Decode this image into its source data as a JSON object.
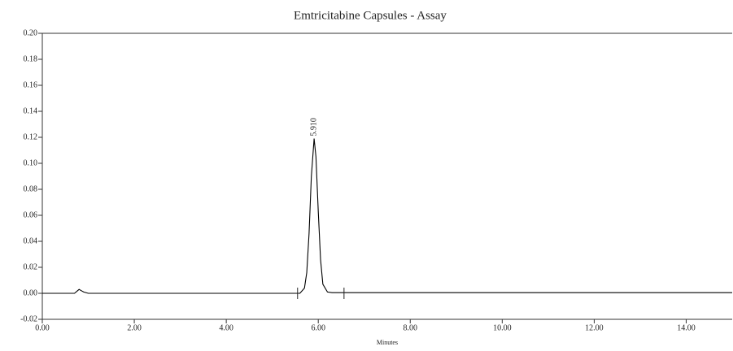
{
  "chart_data": {
    "type": "line",
    "title": "Emtricitabine Capsules - Assay",
    "xlabel": "Minutes",
    "x": [
      0,
      0.7,
      0.8,
      0.85,
      0.9,
      1.0,
      1.5,
      5.5,
      5.6,
      5.7,
      5.75,
      5.8,
      5.85,
      5.91,
      5.95,
      6.0,
      6.05,
      6.1,
      6.2,
      6.3,
      6.5,
      10,
      15
    ],
    "series": [
      {
        "color": "#000000",
        "values": [
          0,
          0,
          0.003,
          0.002,
          0.001,
          0,
          0,
          0,
          0,
          0.004,
          0.016,
          0.046,
          0.09,
          0.119,
          0.105,
          0.063,
          0.026,
          0.007,
          0.001,
          0.0005,
          0.0005,
          0.0005,
          0.0005
        ]
      }
    ],
    "annotations": [
      {
        "text": "5.910",
        "x": 5.91,
        "y": 0.119
      }
    ],
    "integration_marks": [
      5.55,
      6.56
    ],
    "xlim": [
      0,
      15
    ],
    "ylim": [
      -0.02,
      0.2
    ],
    "xticks": [
      {
        "value": 0,
        "label": "0.00"
      },
      {
        "value": 2,
        "label": "2.00"
      },
      {
        "value": 4,
        "label": "4.00"
      },
      {
        "value": 6,
        "label": "6.00"
      },
      {
        "value": 8,
        "label": "8.00"
      },
      {
        "value": 10,
        "label": "10.00"
      },
      {
        "value": 12,
        "label": "12.00"
      },
      {
        "value": 14,
        "label": "14.00"
      }
    ],
    "yticks": [
      {
        "value": -0.02,
        "label": "-0.02"
      },
      {
        "value": 0,
        "label": "0.00"
      },
      {
        "value": 0.02,
        "label": "0.02"
      },
      {
        "value": 0.04,
        "label": "0.04"
      },
      {
        "value": 0.06,
        "label": "0.06"
      },
      {
        "value": 0.08,
        "label": "0.08"
      },
      {
        "value": 0.1,
        "label": "0.10"
      },
      {
        "value": 0.12,
        "label": "0.12"
      },
      {
        "value": 0.14,
        "label": "0.14"
      },
      {
        "value": 0.16,
        "label": "0.16"
      },
      {
        "value": 0.18,
        "label": "0.18"
      },
      {
        "value": 0.2,
        "label": "0.20"
      }
    ]
  }
}
